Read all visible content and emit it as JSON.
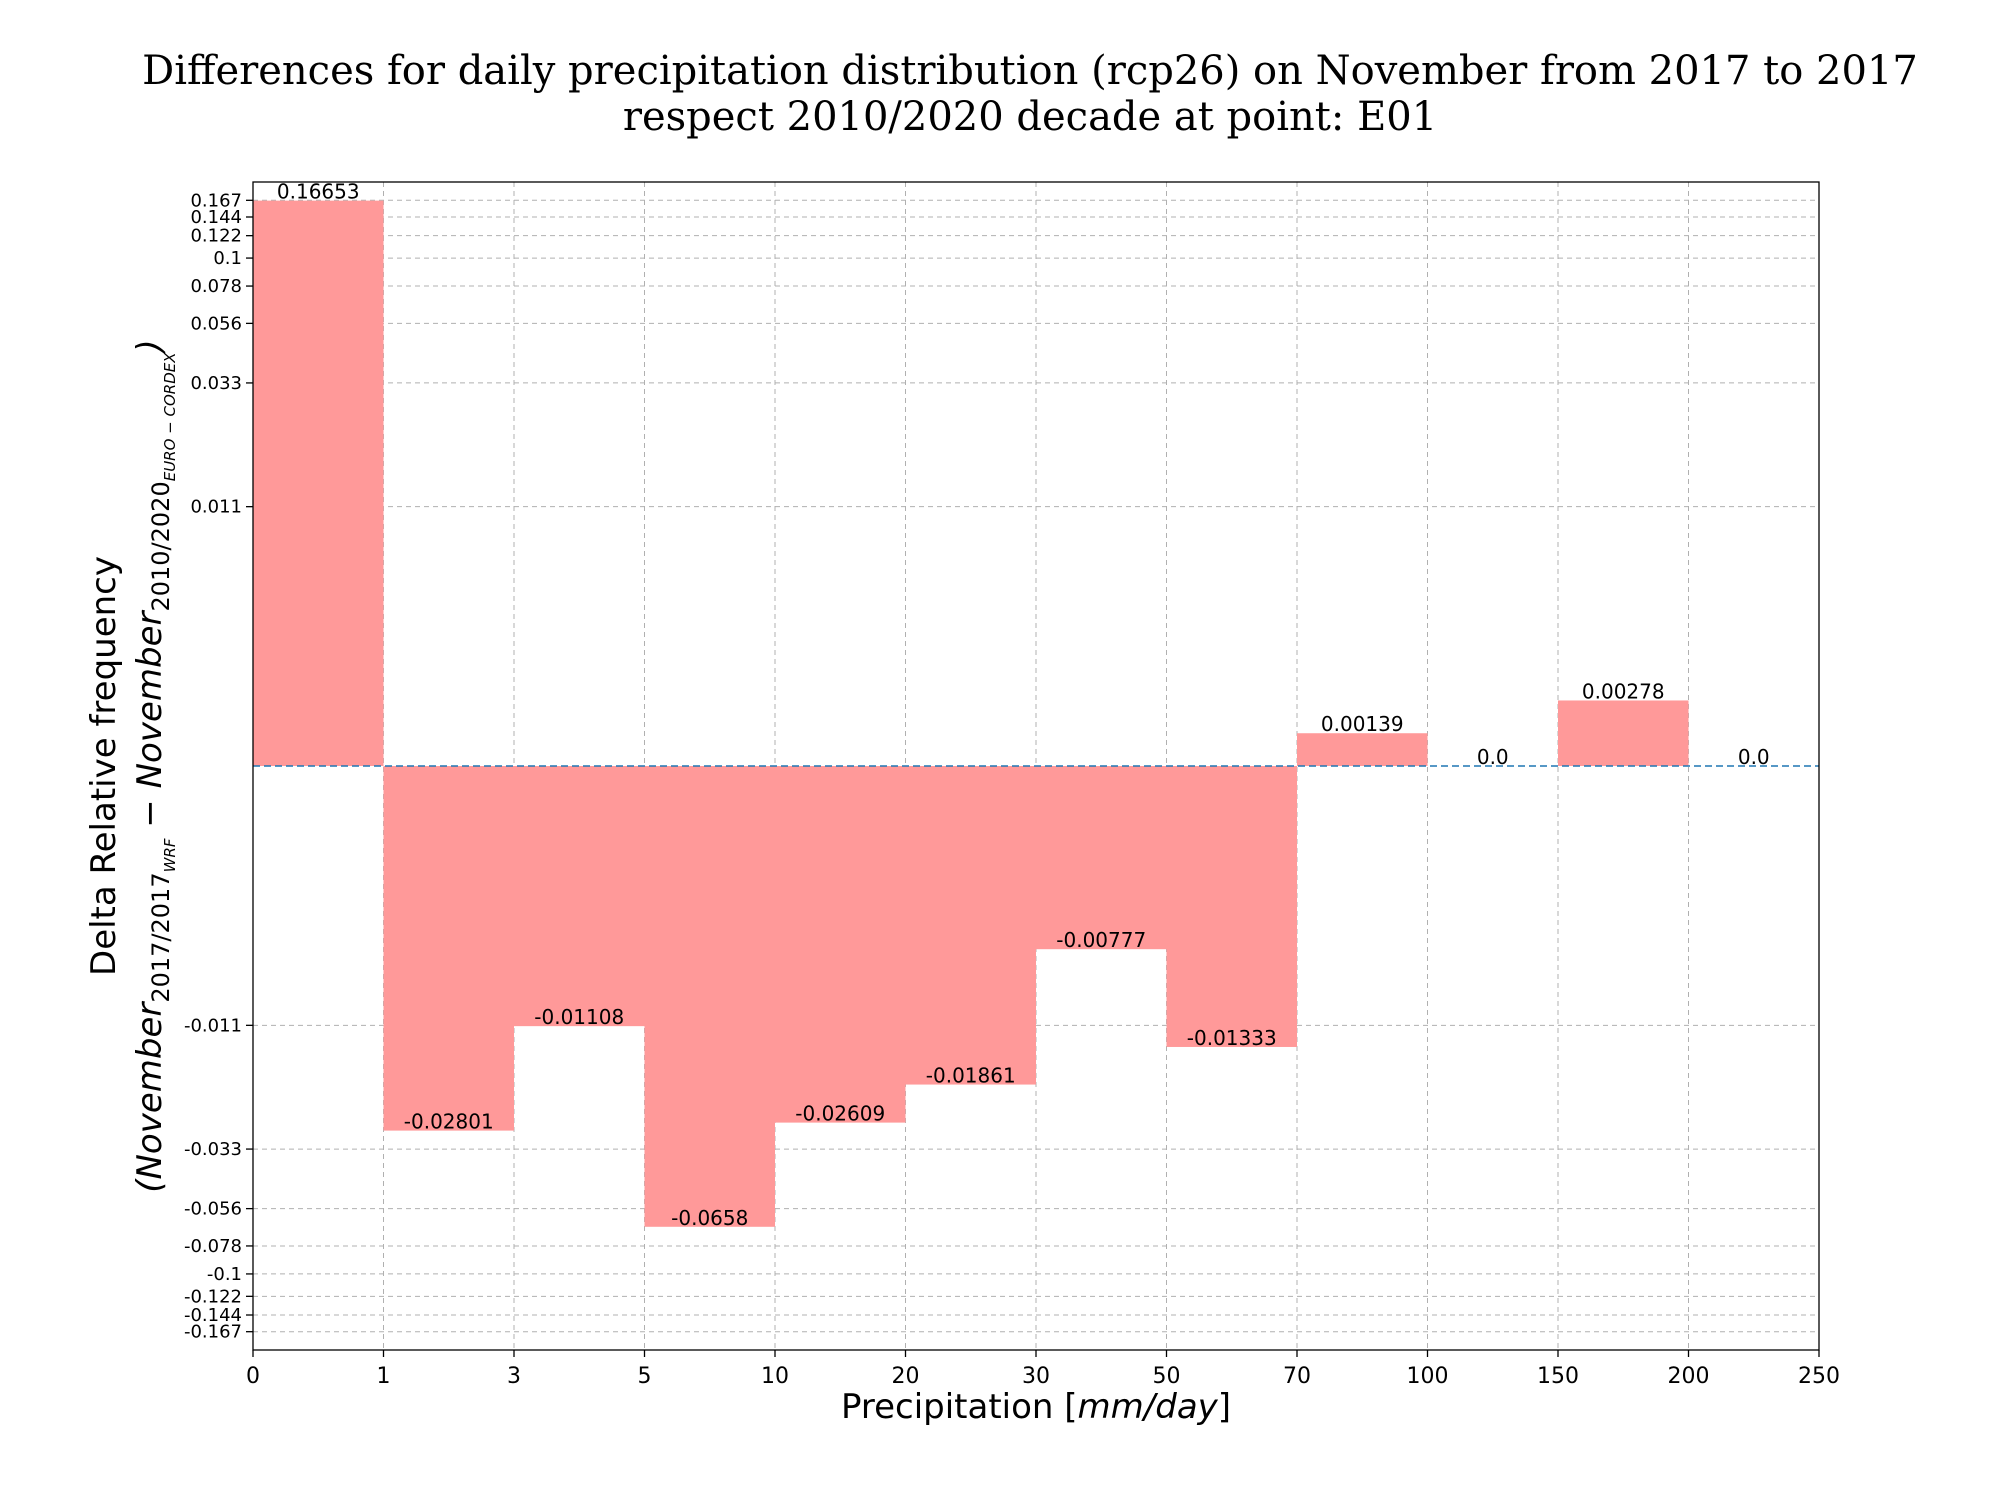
{
  "chart_data": {
    "type": "bar",
    "title_line1": "Differences for daily precipitation distribution (rcp26) on November from 2017 to 2017",
    "title_line2": "respect 2010/2020 decade at point: E01",
    "xlabel_text": "Precipitation [",
    "xlabel_unit": "mm/day",
    "xlabel_end": "]",
    "ylabel_line1": "Delta Relative frequency",
    "ylabel_line2": {
      "open": "(",
      "a_base": "November",
      "a_sub": "2017/2017",
      "a_subsub": "WRF",
      "minus": " − ",
      "b_base": "November",
      "b_sub": "2010/2020",
      "b_subsub": "EURO − CORDEX",
      "close": ")"
    },
    "x_tick_labels": [
      "0",
      "1",
      "3",
      "5",
      "10",
      "20",
      "30",
      "50",
      "70",
      "100",
      "150",
      "200",
      "250"
    ],
    "bins": [
      {
        "from": "0",
        "to": "1",
        "value": 0.16653,
        "label": "0.16653"
      },
      {
        "from": "1",
        "to": "3",
        "value": -0.02801,
        "label": "-0.02801"
      },
      {
        "from": "3",
        "to": "5",
        "value": -0.01108,
        "label": "-0.01108"
      },
      {
        "from": "5",
        "to": "10",
        "value": -0.0658,
        "label": "-0.0658"
      },
      {
        "from": "10",
        "to": "20",
        "value": -0.02609,
        "label": "-0.02609"
      },
      {
        "from": "20",
        "to": "30",
        "value": -0.01861,
        "label": "-0.01861"
      },
      {
        "from": "30",
        "to": "50",
        "value": -0.00777,
        "label": "-0.00777"
      },
      {
        "from": "50",
        "to": "70",
        "value": -0.01333,
        "label": "-0.01333"
      },
      {
        "from": "70",
        "to": "100",
        "value": 0.00139,
        "label": "0.00139"
      },
      {
        "from": "100",
        "to": "150",
        "value": 0.0,
        "label": "0.0"
      },
      {
        "from": "150",
        "to": "200",
        "value": 0.00278,
        "label": "0.00278"
      },
      {
        "from": "200",
        "to": "250",
        "value": 0.0,
        "label": "0.0"
      }
    ],
    "y_ticks": [
      {
        "value": 0.167,
        "label": "0.167"
      },
      {
        "value": 0.144,
        "label": "0.144"
      },
      {
        "value": 0.122,
        "label": "0.122"
      },
      {
        "value": 0.1,
        "label": "0.1"
      },
      {
        "value": 0.078,
        "label": "0.078"
      },
      {
        "value": 0.056,
        "label": "0.056"
      },
      {
        "value": 0.033,
        "label": "0.033"
      },
      {
        "value": 0.011,
        "label": "0.011"
      },
      {
        "value": -0.011,
        "label": "-0.011"
      },
      {
        "value": -0.033,
        "label": "-0.033"
      },
      {
        "value": -0.056,
        "label": "-0.056"
      },
      {
        "value": -0.078,
        "label": "-0.078"
      },
      {
        "value": -0.1,
        "label": "-0.1"
      },
      {
        "value": -0.122,
        "label": "-0.122"
      },
      {
        "value": -0.144,
        "label": "-0.144"
      },
      {
        "value": -0.167,
        "label": "-0.167"
      }
    ],
    "y_scale": "symmetric log",
    "ylim": [
      -0.2,
      0.2
    ],
    "grid": true,
    "bar_color": "#ff9999",
    "zero_line_color": "#1f77b4"
  }
}
